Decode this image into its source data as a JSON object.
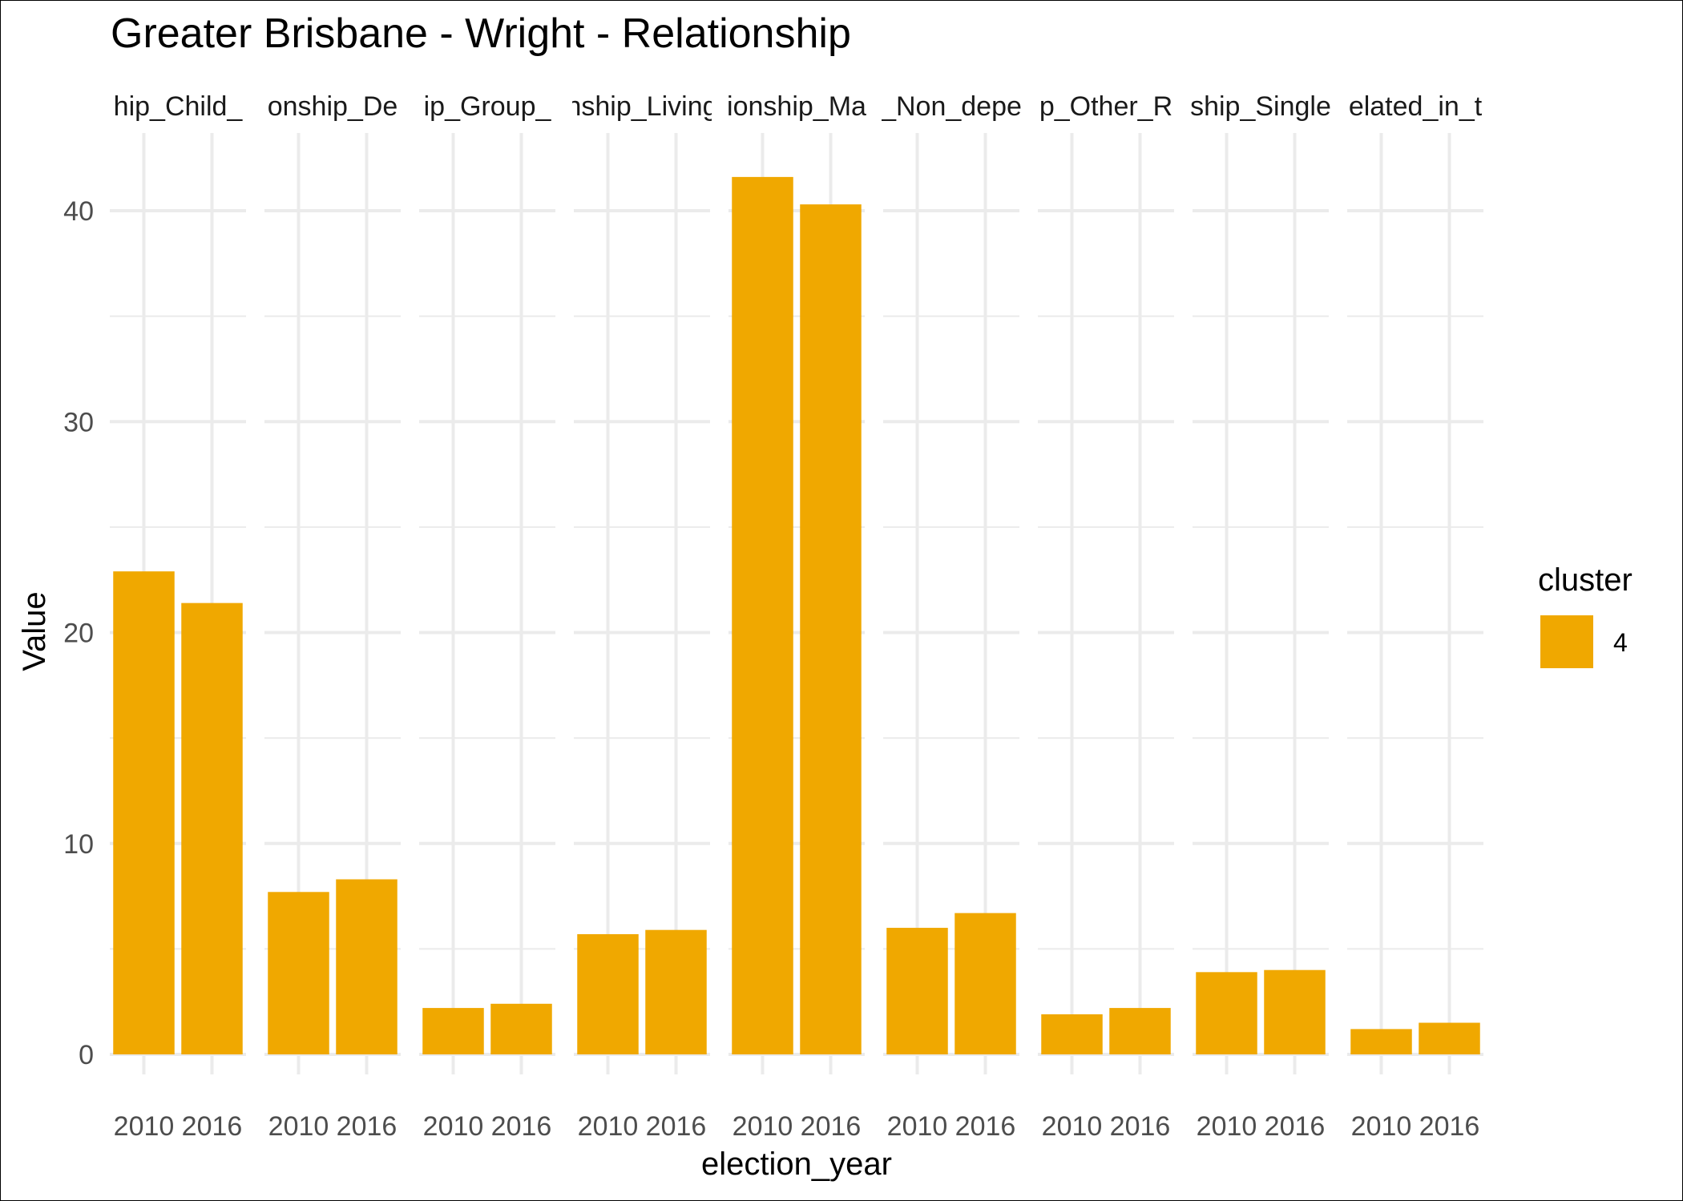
{
  "chart_data": {
    "type": "bar",
    "title": "Greater Brisbane - Wright - Relationship",
    "xlabel": "election_year",
    "ylabel": "Value",
    "ylim": [
      -0.7,
      43.6
    ],
    "yticks": [
      0,
      10,
      20,
      30,
      40
    ],
    "grid": true,
    "facet_labels": [
      "hip_Child_",
      "onship_De",
      "ip_Group_",
      "nship_Living",
      "ionship_Ma",
      "_Non_depe",
      "p_Other_R",
      "ship_Single",
      "elated_in_t"
    ],
    "categories": [
      "2010",
      "2016"
    ],
    "series": [
      {
        "name": "4",
        "facet_values": [
          [
            22.9,
            21.4
          ],
          [
            7.7,
            8.3
          ],
          [
            2.2,
            2.4
          ],
          [
            5.7,
            5.9
          ],
          [
            41.6,
            40.3
          ],
          [
            6.0,
            6.7
          ],
          [
            1.9,
            2.2
          ],
          [
            3.9,
            4.0
          ],
          [
            1.2,
            1.5
          ]
        ]
      }
    ],
    "legend": {
      "title": "cluster",
      "position": "right",
      "entries": [
        {
          "label": "4",
          "color": "#F0A800"
        }
      ]
    },
    "colors": {
      "bar": "#F0A800",
      "grid": "#EBEBEB",
      "text": "#000000",
      "axis_text": "#4D4D4D"
    }
  }
}
